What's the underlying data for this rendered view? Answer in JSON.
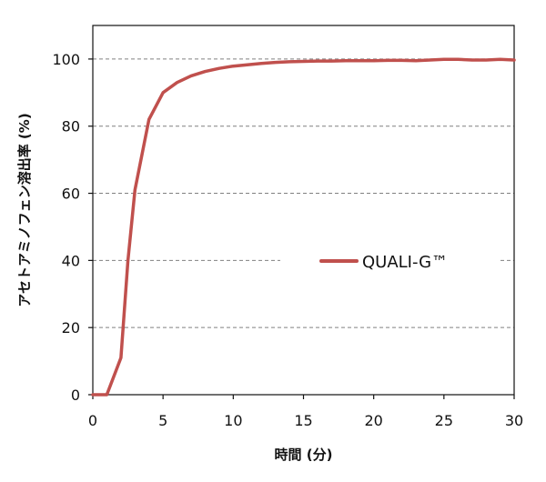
{
  "chart_data": {
    "type": "line",
    "xlabel": "時間 (分)",
    "ylabel": "アセトアミノフェン溶出率 (%)",
    "xlim": [
      0,
      30
    ],
    "ylim": [
      0,
      110
    ],
    "xticks": [
      0,
      5,
      10,
      15,
      20,
      25,
      30
    ],
    "yticks": [
      0,
      20,
      40,
      60,
      80,
      100
    ],
    "grid": "horizontal-dashed",
    "legend_position": "center-right",
    "series": [
      {
        "name": "QUALI-G™",
        "color": "#c0504d",
        "x": [
          0,
          1,
          2,
          2.5,
          3,
          4,
          5,
          6,
          7,
          8,
          9,
          10,
          11,
          12,
          13,
          14,
          15,
          16,
          17,
          18,
          19,
          20,
          21,
          22,
          23,
          24,
          25,
          26,
          27,
          28,
          29,
          30
        ],
        "y": [
          0,
          0,
          11,
          40,
          61,
          82,
          90,
          93,
          95,
          96.3,
          97.2,
          97.9,
          98.3,
          98.7,
          99,
          99.2,
          99.3,
          99.4,
          99.4,
          99.5,
          99.5,
          99.5,
          99.6,
          99.6,
          99.5,
          99.7,
          99.9,
          99.9,
          99.7,
          99.7,
          99.9,
          99.7
        ]
      }
    ]
  }
}
